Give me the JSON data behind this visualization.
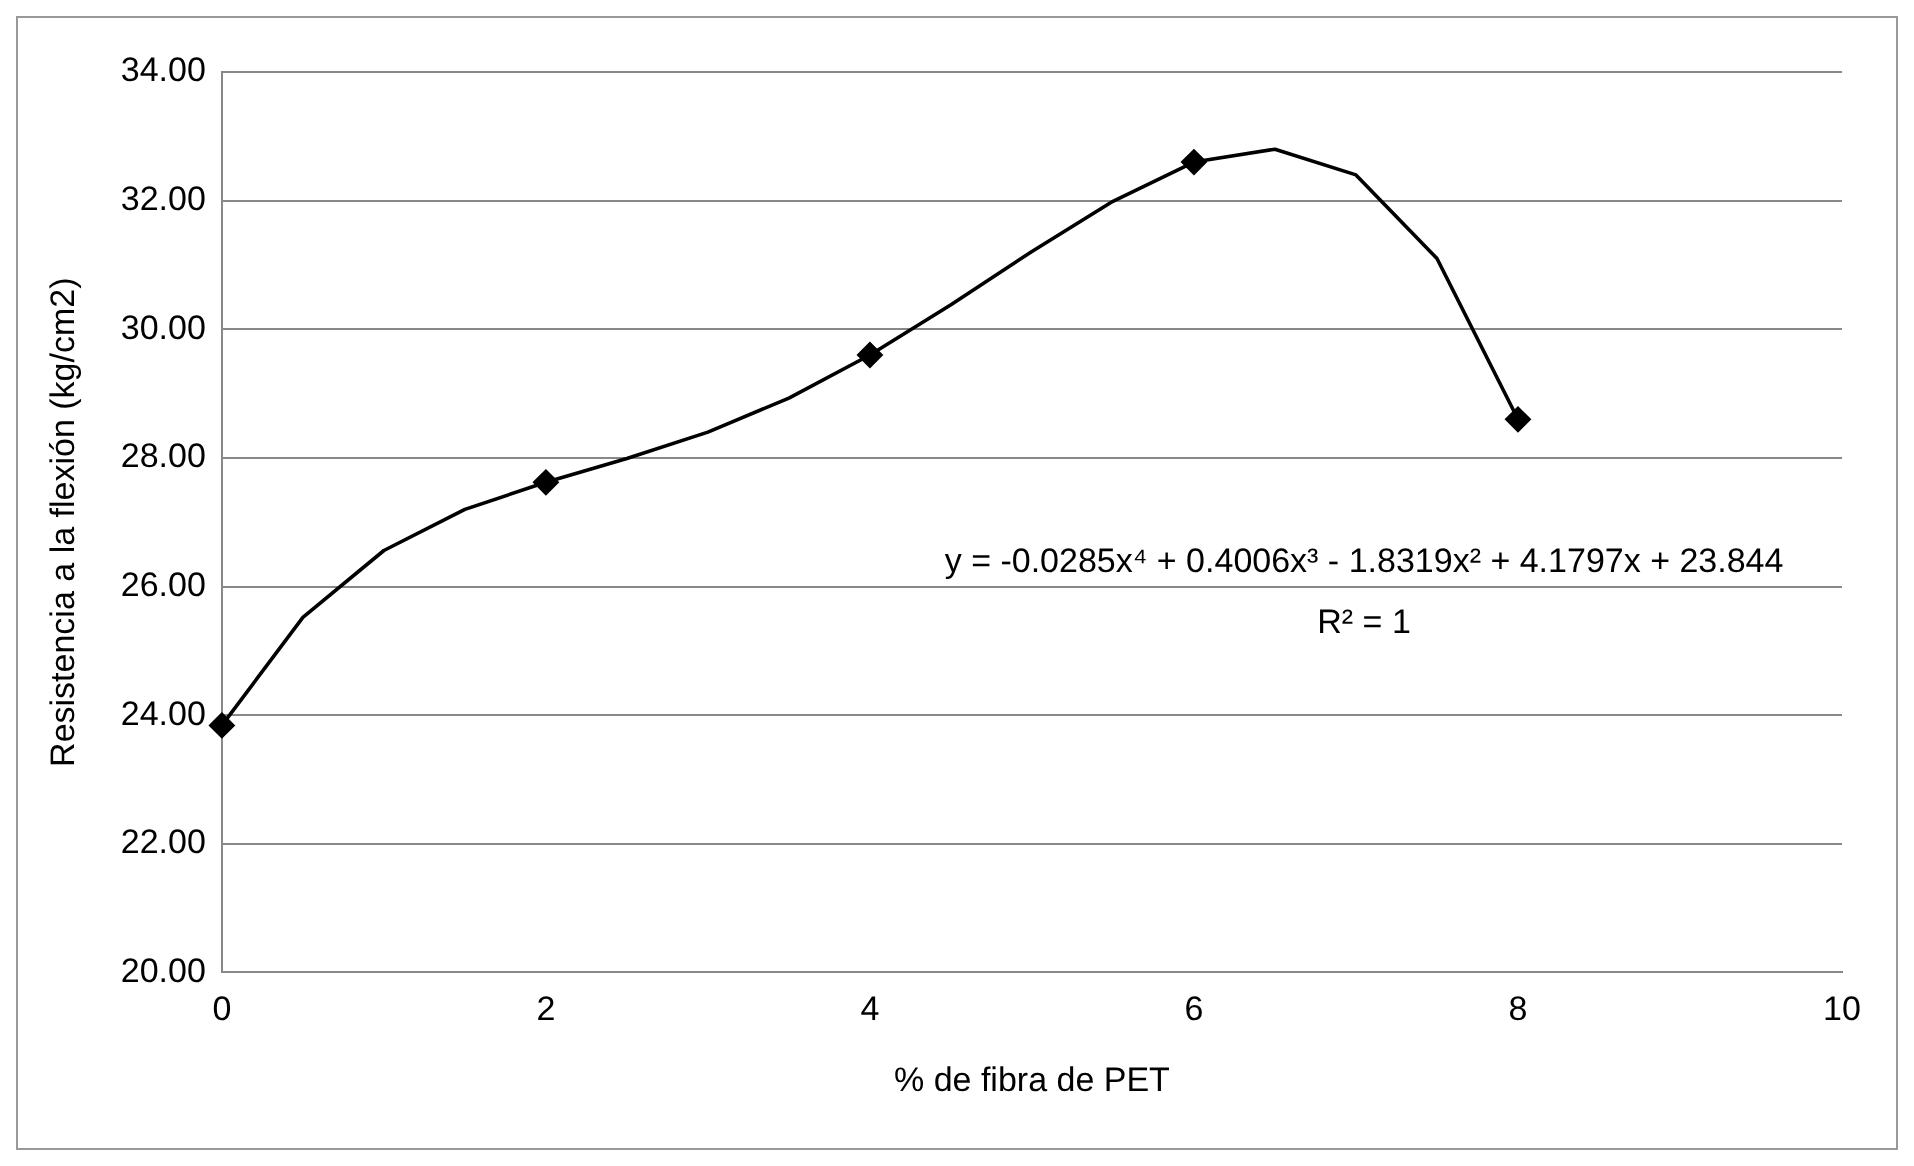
{
  "chart_data": {
    "type": "scatter",
    "xlabel": "% de fibra de PET",
    "ylabel": "Resistencia a la flexión (kg/cm2)",
    "x": [
      0,
      2,
      4,
      6,
      8
    ],
    "series": [
      {
        "type": "scatter",
        "color": "#000000",
        "marker": "diamond",
        "values": [
          23.84,
          27.62,
          29.6,
          32.6,
          28.6
        ]
      },
      {
        "type": "line",
        "color": "#000000",
        "marker": "none",
        "line_style": "solid",
        "x": [
          0,
          0.5,
          1,
          1.5,
          2,
          2.5,
          3,
          3.5,
          4,
          4.5,
          5,
          5.5,
          6,
          6.5,
          7,
          7.5,
          8
        ],
        "values": [
          23.84,
          25.52,
          26.56,
          27.2,
          27.62,
          27.99,
          28.4,
          28.93,
          29.6,
          30.38,
          31.21,
          31.99,
          32.6,
          32.8,
          32.4,
          31.1,
          28.6
        ]
      }
    ],
    "xlim": [
      0,
      10
    ],
    "xticks": [
      0,
      2,
      4,
      6,
      8,
      10
    ],
    "ylim": [
      20,
      34
    ],
    "yticks": [
      {
        "value": 20,
        "label": "20.00"
      },
      {
        "value": 22,
        "label": "22.00"
      },
      {
        "value": 24,
        "label": "24.00"
      },
      {
        "value": 26,
        "label": "26.00"
      },
      {
        "value": 28,
        "label": "28.00"
      },
      {
        "value": 30,
        "label": "30.00"
      },
      {
        "value": 32,
        "label": "32.00"
      },
      {
        "value": 34,
        "label": "34.00"
      }
    ],
    "grid": "y",
    "legend": false,
    "annotations": [
      "y = -0.0285x⁴ + 0.4006x³ - 1.8319x² + 4.1797x + 23.844",
      "R² = 1"
    ]
  }
}
